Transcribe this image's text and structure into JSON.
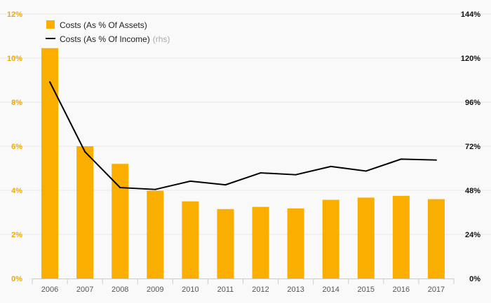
{
  "chart_data": {
    "type": "bar",
    "categories": [
      "2006",
      "2007",
      "2008",
      "2009",
      "2010",
      "2011",
      "2012",
      "2013",
      "2014",
      "2015",
      "2016",
      "2017"
    ],
    "series": [
      {
        "name": "Costs (As % Of Assets)",
        "type": "bar",
        "axis": "left",
        "color": "#f9ae00",
        "values": [
          10.45,
          6.0,
          5.2,
          3.98,
          3.5,
          3.15,
          3.25,
          3.18,
          3.57,
          3.67,
          3.75,
          3.6
        ]
      },
      {
        "name": "Costs (As % Of Income)",
        "name_suffix": "(rhs)",
        "type": "line",
        "axis": "right",
        "color": "#000000",
        "values": [
          107,
          69,
          49.5,
          48.5,
          53,
          51,
          57.5,
          56.5,
          61,
          58.5,
          65,
          64.5
        ]
      }
    ],
    "y_left": {
      "ticks": [
        0,
        2,
        4,
        6,
        8,
        10,
        12
      ],
      "tick_labels": [
        "0%",
        "2%",
        "4%",
        "6%",
        "8%",
        "10%",
        "12%"
      ],
      "range": [
        0,
        12
      ],
      "color": "#f3a800"
    },
    "y_right": {
      "ticks": [
        0,
        24,
        48,
        72,
        96,
        120,
        144
      ],
      "tick_labels": [
        "0%",
        "24%",
        "48%",
        "72%",
        "96%",
        "120%",
        "144%"
      ],
      "range": [
        0,
        144
      ],
      "color": "#111111"
    },
    "grid": true,
    "legend_position": "top-left"
  }
}
